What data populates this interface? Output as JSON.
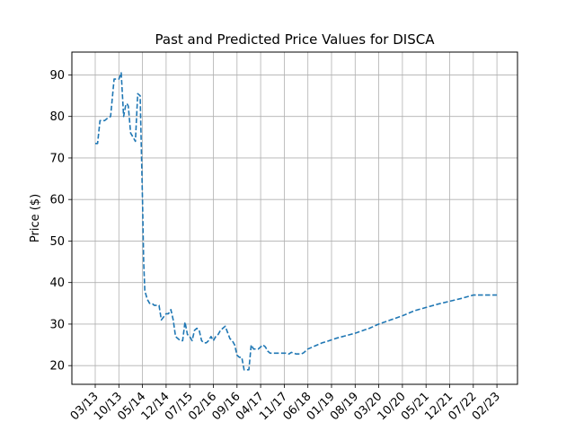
{
  "chart_data": {
    "type": "line",
    "title": "Past and Predicted Price Values for DISCA",
    "xlabel": "",
    "ylabel": "Price ($)",
    "grid": true,
    "ylim": [
      15.5,
      95.5
    ],
    "yticks": [
      20,
      30,
      40,
      50,
      60,
      70,
      80,
      90
    ],
    "xticks": [
      "03/13",
      "10/13",
      "05/14",
      "12/14",
      "07/15",
      "02/16",
      "09/16",
      "04/17",
      "11/17",
      "06/18",
      "01/19",
      "08/19",
      "03/20",
      "10/20",
      "05/21",
      "12/21",
      "07/22",
      "02/23"
    ],
    "line_color": "#1f77b4",
    "line_style": "dashed",
    "series": [
      {
        "x": [
          0.0,
          0.1,
          0.2,
          0.3,
          0.4,
          0.5,
          0.65,
          0.8,
          0.9,
          1.0,
          1.1,
          1.2,
          1.3,
          1.35,
          1.4,
          1.5,
          1.6,
          1.7,
          1.8,
          1.9,
          2.0,
          2.05,
          2.1,
          2.2,
          2.3,
          2.4,
          2.5,
          2.6,
          2.7,
          2.8,
          3.0,
          3.1,
          3.2,
          3.3,
          3.4,
          3.5,
          3.6,
          3.7,
          3.8,
          3.9,
          4.0,
          4.1,
          4.2,
          4.3,
          4.4,
          4.5,
          4.6,
          4.7,
          4.8,
          4.9,
          5.0,
          5.1,
          5.2,
          5.3,
          5.4,
          5.5,
          5.6,
          5.7,
          5.8,
          5.9,
          6.0,
          6.1,
          6.2,
          6.3,
          6.4,
          6.5,
          6.6,
          6.7,
          6.8,
          6.9,
          7.0,
          7.1,
          7.2,
          7.3,
          7.4,
          7.5,
          7.6,
          7.7,
          7.8,
          7.9,
          8.0,
          8.1,
          8.2,
          8.3,
          8.4,
          8.5,
          8.6,
          8.7,
          8.8,
          8.9,
          9.0,
          9.2,
          9.4,
          9.6,
          9.8,
          10.0,
          10.2,
          10.4,
          10.6,
          10.8,
          11.0,
          11.2,
          11.4,
          11.6,
          11.8,
          12.0,
          12.5,
          13.0,
          13.5,
          14.0,
          14.5,
          15.0,
          15.5,
          16.0,
          16.5,
          17.0
        ],
        "y": [
          73.5,
          73.5,
          79.0,
          79.0,
          79.0,
          79.5,
          80.0,
          89.0,
          89.0,
          89.0,
          90.5,
          80.0,
          83.0,
          83.0,
          82.5,
          76.0,
          75.0,
          74.0,
          85.5,
          85.0,
          60.0,
          45.0,
          38.0,
          36.0,
          35.0,
          35.0,
          34.5,
          34.5,
          34.5,
          31.0,
          32.5,
          32.5,
          33.5,
          31.0,
          27.0,
          26.5,
          26.0,
          26.0,
          30.5,
          27.5,
          27.0,
          26.0,
          28.5,
          29.0,
          28.5,
          26.0,
          25.5,
          25.5,
          26.0,
          27.0,
          26.0,
          27.0,
          27.5,
          28.5,
          29.0,
          29.5,
          28.0,
          26.5,
          26.0,
          25.0,
          22.5,
          22.0,
          22.0,
          19.0,
          19.0,
          19.0,
          25.0,
          24.0,
          24.0,
          24.0,
          24.5,
          25.0,
          24.5,
          23.5,
          23.0,
          23.0,
          23.0,
          23.0,
          23.0,
          23.0,
          23.0,
          23.0,
          22.8,
          23.2,
          23.0,
          22.8,
          22.8,
          22.8,
          23.0,
          23.5,
          24.0,
          24.5,
          25.0,
          25.5,
          25.8,
          26.2,
          26.6,
          26.9,
          27.2,
          27.5,
          27.8,
          28.2,
          28.6,
          29.0,
          29.5,
          30.0,
          31.0,
          32.0,
          33.2,
          34.0,
          34.8,
          35.5,
          36.2,
          37.0,
          37.0,
          37.0
        ]
      }
    ]
  }
}
